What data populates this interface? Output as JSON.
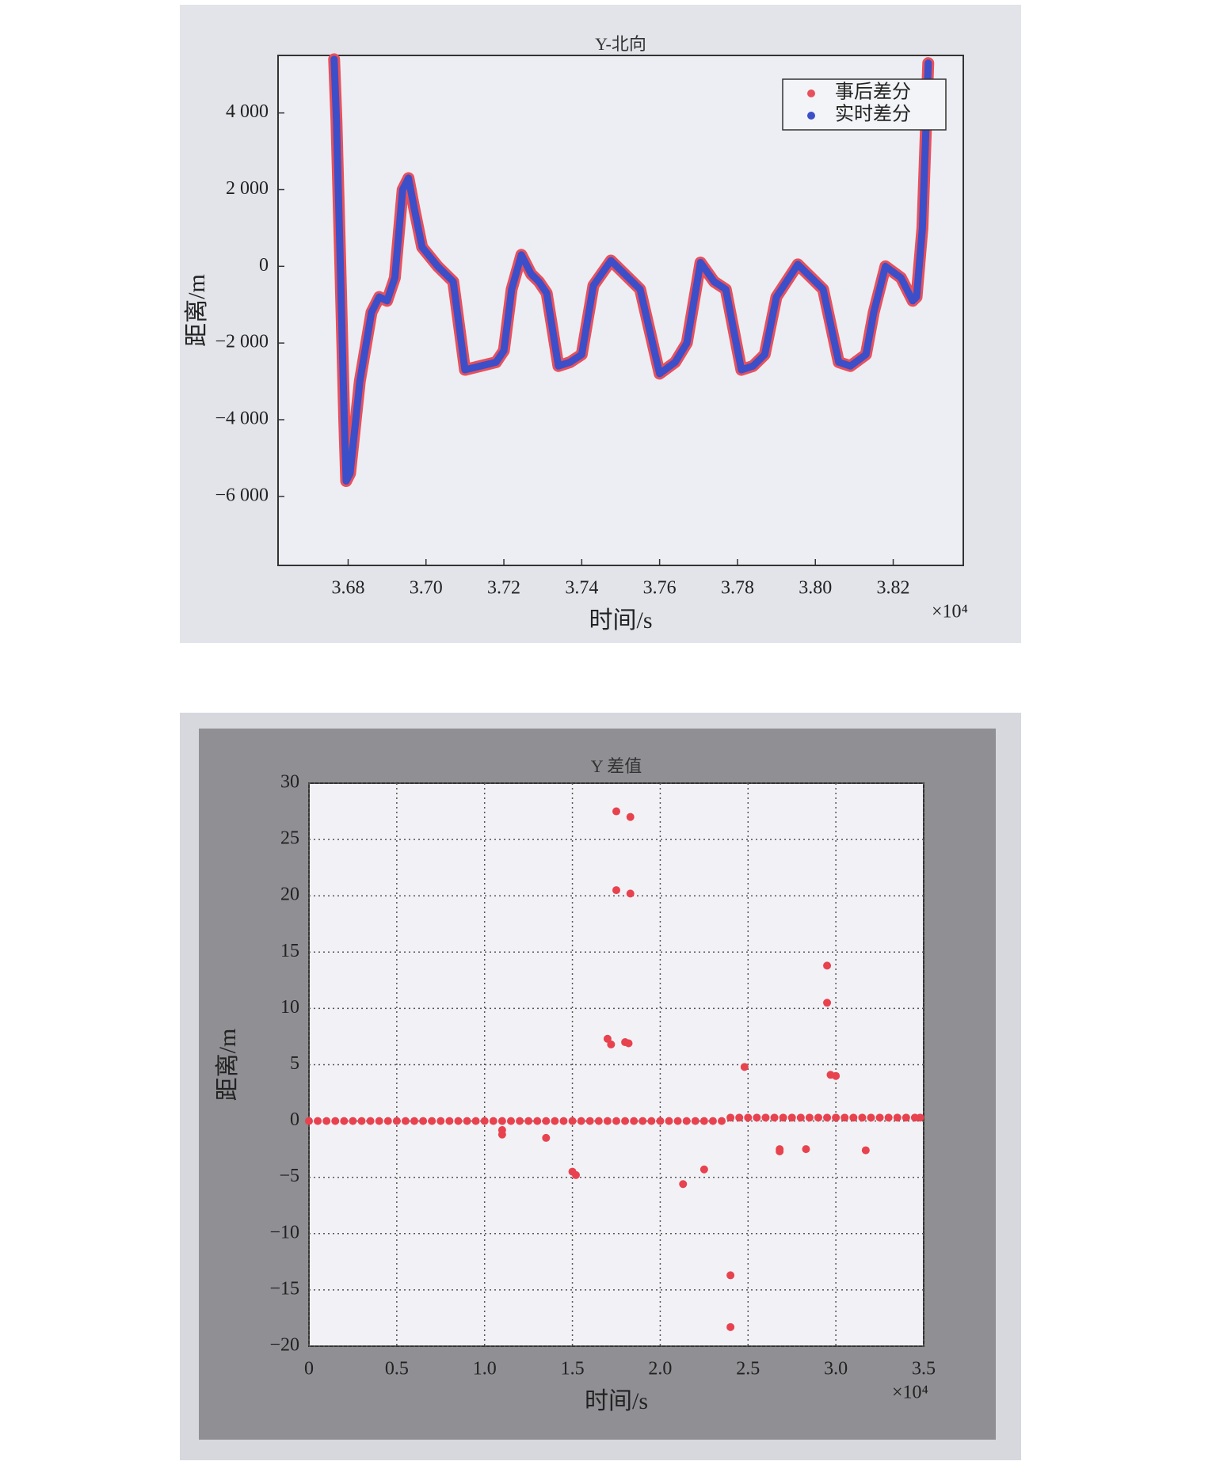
{
  "chart_data": [
    {
      "type": "line",
      "title": "Y-北向",
      "xlabel": "时间/s",
      "ylabel": "距离/m",
      "x_multiplier": "×10⁴",
      "x": [
        3.6764,
        3.677,
        3.678,
        3.679,
        3.6795,
        3.6805,
        3.683,
        3.686,
        3.688,
        3.69,
        3.692,
        3.694,
        3.6955,
        3.697,
        3.699,
        3.703,
        3.707,
        3.71,
        3.714,
        3.718,
        3.72,
        3.722,
        3.7245,
        3.727,
        3.729,
        3.731,
        3.734,
        3.737,
        3.74,
        3.743,
        3.7475,
        3.751,
        3.754,
        3.755,
        3.76,
        3.764,
        3.767,
        3.7705,
        3.774,
        3.777,
        3.781,
        3.784,
        3.787,
        3.79,
        3.7955,
        3.799,
        3.802,
        3.806,
        3.809,
        3.813,
        3.815,
        3.818,
        3.822,
        3.825,
        3.826,
        3.8275,
        3.829
      ],
      "series": [
        {
          "name": "事后差分",
          "color": "#e8505c",
          "values": [
            5400,
            3800,
            0,
            -4000,
            -5600,
            -5400,
            -3000,
            -1200,
            -800,
            -900,
            -300,
            2000,
            2300,
            1500,
            500,
            0,
            -400,
            -2700,
            -2600,
            -2500,
            -2200,
            -600,
            300,
            -200,
            -400,
            -700,
            -2600,
            -2500,
            -2300,
            -500,
            150,
            -200,
            -500,
            -600,
            -2800,
            -2500,
            -2000,
            100,
            -400,
            -600,
            -2700,
            -2600,
            -2300,
            -800,
            50,
            -300,
            -600,
            -2500,
            -2600,
            -2300,
            -1200,
            0,
            -300,
            -900,
            -800,
            1000,
            5300
          ]
        },
        {
          "name": "实时差分",
          "color": "#3c4fc8",
          "values": [
            5400,
            3800,
            0,
            -4000,
            -5600,
            -5400,
            -3000,
            -1200,
            -800,
            -900,
            -300,
            2000,
            2300,
            1500,
            500,
            0,
            -400,
            -2700,
            -2600,
            -2500,
            -2200,
            -600,
            300,
            -200,
            -400,
            -700,
            -2600,
            -2500,
            -2300,
            -500,
            150,
            -200,
            -500,
            -600,
            -2800,
            -2500,
            -2000,
            100,
            -400,
            -600,
            -2700,
            -2600,
            -2300,
            -800,
            50,
            -300,
            -600,
            -2500,
            -2600,
            -2300,
            -1200,
            0,
            -300,
            -900,
            -800,
            1000,
            5300
          ]
        }
      ],
      "xlim": [
        3.662,
        3.838
      ],
      "xticks": [
        3.68,
        {
          "value": 3.7,
          "label": "3.70"
        },
        3.72,
        3.74,
        3.76,
        3.78,
        {
          "value": 3.8,
          "label": "3.80"
        },
        3.82
      ],
      "ylim": [
        -7800,
        5500
      ],
      "yticks": [
        {
          "value": -6000,
          "label": "−6 000"
        },
        {
          "value": -4000,
          "label": "−4 000"
        },
        {
          "value": -2000,
          "label": "−2 000"
        },
        0,
        {
          "value": 2000,
          "label": "2 000"
        },
        {
          "value": 4000,
          "label": "4 000"
        }
      ],
      "grid": false,
      "legend": "upper right"
    },
    {
      "type": "scatter",
      "title": "Y 差值",
      "xlabel": "时间/s",
      "ylabel": "距离/m",
      "x_multiplier": "×10⁴",
      "color": "#e8424f",
      "x": [
        1.1,
        1.1,
        1.35,
        1.5,
        1.52,
        1.7,
        1.72,
        1.75,
        1.75,
        1.8,
        1.82,
        1.83,
        1.83,
        2.13,
        2.25,
        2.4,
        2.4,
        2.48,
        2.68,
        2.68,
        2.83,
        2.95,
        2.95,
        2.97,
        3.0,
        3.17,
        0,
        0.05,
        0.1,
        0.15,
        0.2,
        0.25,
        0.3,
        0.35,
        0.4,
        0.45,
        0.5,
        0.55,
        0.6,
        0.65,
        0.7,
        0.75,
        0.8,
        0.85,
        0.9,
        0.95,
        1,
        1.05,
        1.1,
        1.15,
        1.2,
        1.25,
        1.3,
        1.35,
        1.4,
        1.45,
        1.5,
        1.55,
        1.6,
        1.65,
        1.7,
        1.75,
        1.8,
        1.85,
        1.9,
        1.95,
        2,
        2.05,
        2.1,
        2.15,
        2.2,
        2.25,
        2.3,
        2.35,
        2.4,
        2.45,
        2.5,
        2.55,
        2.6,
        2.65,
        2.7,
        2.75,
        2.8,
        2.85,
        2.9,
        2.95,
        3,
        3.05,
        3.1,
        3.15,
        3.2,
        3.25,
        3.3,
        3.35,
        3.4,
        3.45,
        3.48
      ],
      "values": [
        -0.8,
        -1.2,
        -1.5,
        -4.5,
        -4.8,
        7.3,
        6.8,
        27.5,
        20.5,
        7,
        6.9,
        27,
        20.2,
        -5.6,
        -4.3,
        -13.7,
        -18.3,
        4.8,
        -2.5,
        -2.7,
        -2.5,
        13.8,
        10.5,
        4.1,
        4,
        -2.6,
        0,
        0,
        0,
        0,
        0,
        0,
        0,
        0,
        0,
        0,
        0,
        0,
        0,
        0,
        0,
        0,
        0,
        0,
        0,
        0,
        0,
        0,
        0,
        0,
        0,
        0,
        0,
        0,
        0,
        0,
        0,
        0,
        0,
        0,
        0,
        0,
        0,
        0,
        0,
        0,
        0,
        0,
        0,
        0,
        0,
        0,
        0,
        0,
        0.3,
        0.3,
        0.3,
        0.3,
        0.3,
        0.3,
        0.3,
        0.3,
        0.3,
        0.3,
        0.3,
        0.3,
        0.3,
        0.3,
        0.3,
        0.3,
        0.3,
        0.3,
        0.3,
        0.3,
        0.3,
        0.3,
        0.3
      ],
      "xlim": [
        0,
        3.5
      ],
      "xticks": [
        0,
        0.5,
        {
          "value": 1,
          "label": "1.0"
        },
        1.5,
        {
          "value": 2,
          "label": "2.0"
        },
        2.5,
        {
          "value": 3,
          "label": "3.0"
        },
        3.5
      ],
      "ylim": [
        -20,
        30
      ],
      "yticks": [
        {
          "value": -20,
          "label": "−20"
        },
        {
          "value": -15,
          "label": "−15"
        },
        {
          "value": -10,
          "label": "−10"
        },
        {
          "value": -5,
          "label": "−5"
        },
        0,
        5,
        10,
        15,
        20,
        25,
        30
      ],
      "grid": true
    }
  ]
}
